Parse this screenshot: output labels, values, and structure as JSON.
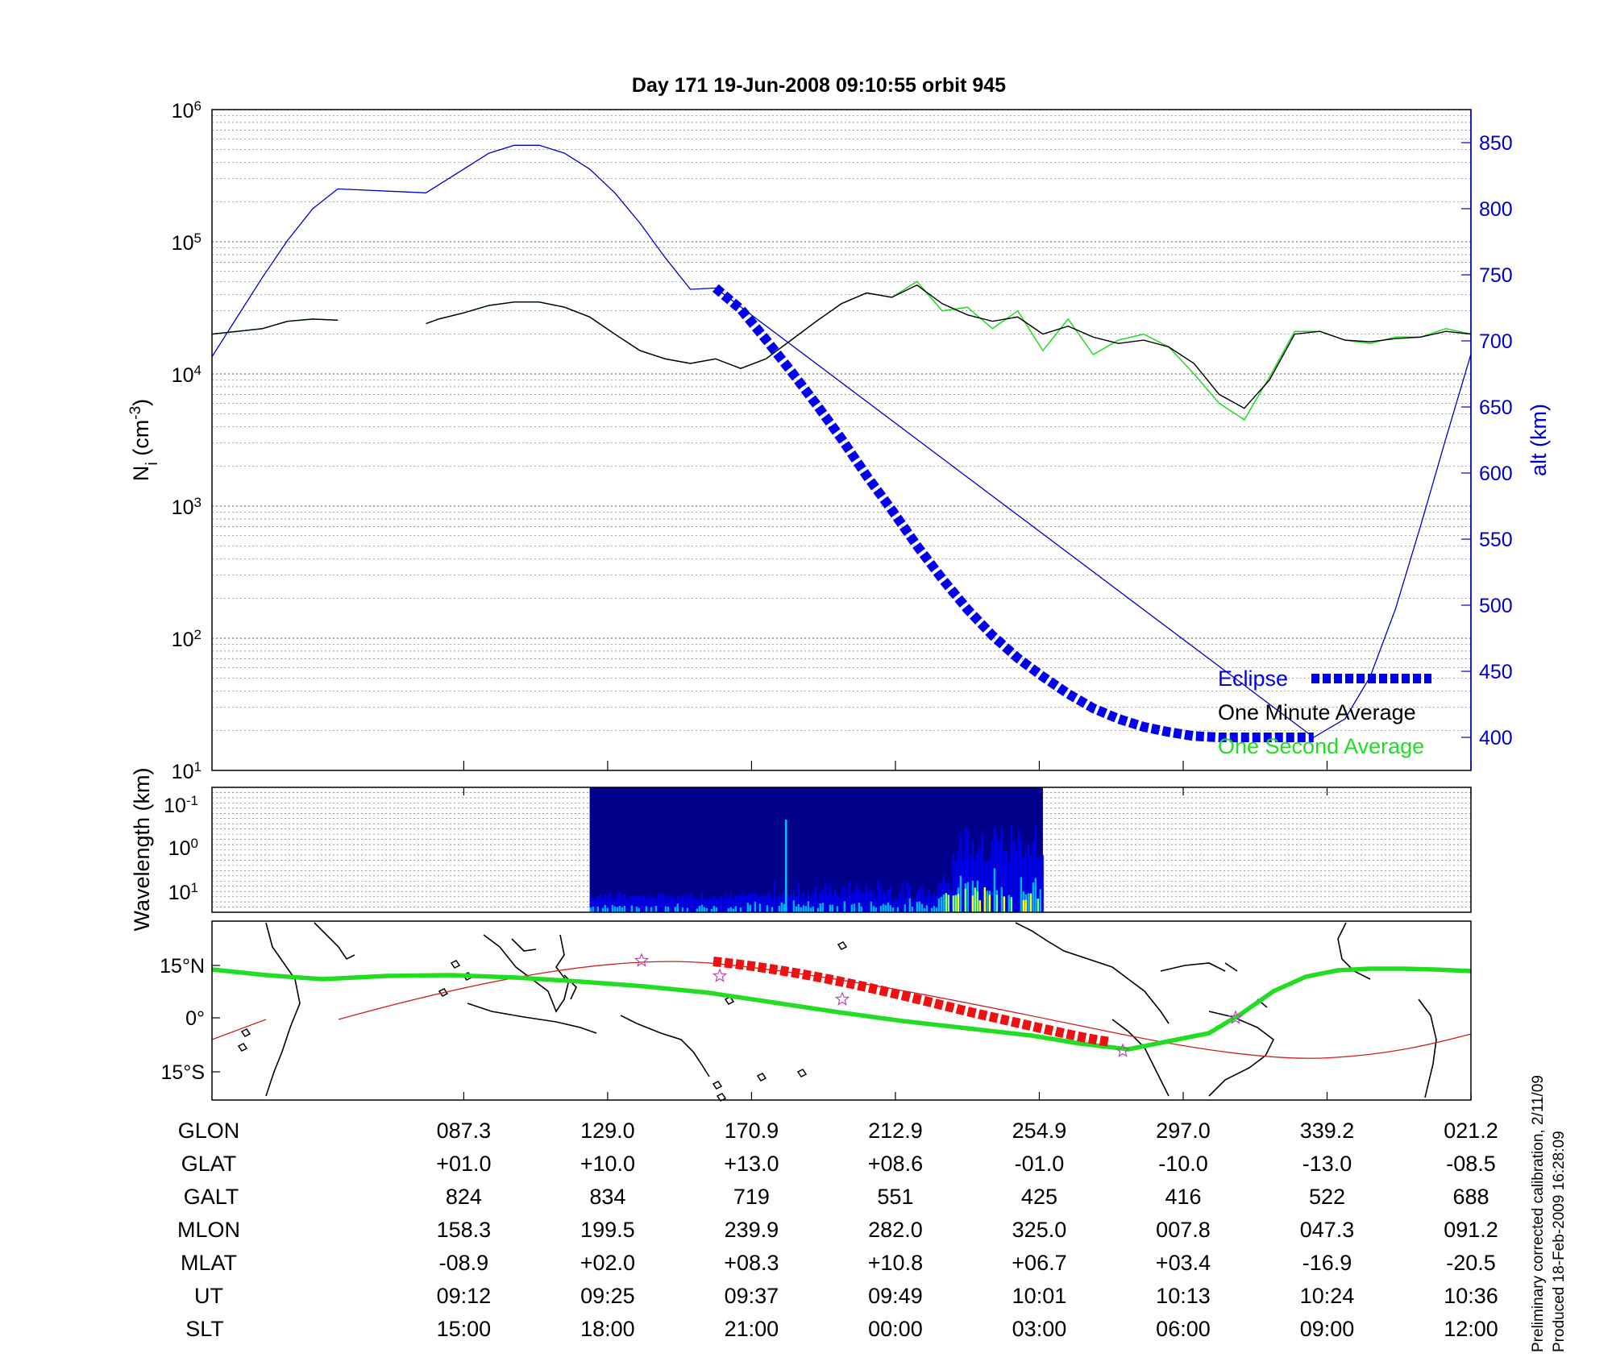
{
  "chart_data": [
    {
      "type": "line",
      "title": "Day 171  19-Jun-2008 09:10:55   orbit 945",
      "y_scale": "log",
      "ylim": [
        10,
        1000000
      ],
      "ylabel_main": "N",
      "ylabel_sub": "i",
      "ylabel_unit": " (cm",
      "ylabel_unit_sup": "-3",
      "ylabel_unit_end": ")",
      "y_ticks": [
        {
          "base": "10",
          "exp": "1"
        },
        {
          "base": "10",
          "exp": "2"
        },
        {
          "base": "10",
          "exp": "3"
        },
        {
          "base": "10",
          "exp": "4"
        },
        {
          "base": "10",
          "exp": "5"
        },
        {
          "base": "10",
          "exp": "6"
        }
      ],
      "y2label": "alt (km)",
      "y2lim": [
        375,
        875
      ],
      "y2_ticks": [
        400,
        450,
        500,
        550,
        600,
        650,
        700,
        750,
        800,
        850
      ],
      "grid": true,
      "legend_position": "bottom-right",
      "series": [
        {
          "name": "Eclipse",
          "color": "#0000ee",
          "axis": "right",
          "style": "thick-dashed",
          "x": [
            0.4,
            0.42,
            0.44,
            0.46,
            0.48,
            0.5,
            0.52,
            0.54,
            0.56,
            0.58,
            0.6,
            0.62,
            0.64,
            0.66,
            0.68,
            0.7,
            0.72,
            0.74,
            0.76,
            0.78,
            0.8,
            0.82,
            0.84,
            0.86,
            0.875
          ],
          "y": [
            740,
            724,
            701,
            677,
            652,
            626,
            598,
            572,
            545,
            520,
            497,
            477,
            460,
            446,
            433,
            422,
            414,
            408,
            404,
            401,
            400,
            400,
            400,
            400,
            400
          ]
        },
        {
          "name": "One Minute Average",
          "color": "#000000",
          "axis": "left",
          "x": [
            0.0,
            0.02,
            0.04,
            0.06,
            0.08,
            0.1,
            0.12,
            0.14,
            0.17,
            0.18,
            0.2,
            0.22,
            0.24,
            0.26,
            0.28,
            0.3,
            0.32,
            0.34,
            0.36,
            0.38,
            0.4,
            0.42,
            0.44,
            0.46,
            0.48,
            0.5,
            0.52,
            0.54,
            0.56,
            0.58,
            0.6,
            0.62,
            0.64,
            0.66,
            0.68,
            0.7,
            0.72,
            0.74,
            0.76,
            0.78,
            0.8,
            0.82,
            0.84,
            0.86,
            0.88,
            0.9,
            0.92,
            0.94,
            0.96,
            0.98,
            1.0
          ],
          "y": [
            20000,
            21000,
            22000,
            25000,
            26000,
            25500,
            null,
            null,
            24000,
            26000,
            29000,
            33000,
            35000,
            35000,
            32000,
            27000,
            20000,
            15000,
            13000,
            12000,
            13000,
            11000,
            13000,
            18000,
            25000,
            34000,
            41000,
            38000,
            47000,
            34000,
            28000,
            25000,
            27000,
            20000,
            23000,
            19000,
            17000,
            18000,
            16000,
            12000,
            7000,
            5500,
            9000,
            20000,
            21000,
            18000,
            17500,
            18500,
            19000,
            21000,
            20000
          ]
        },
        {
          "name": "One Second Average",
          "color": "#22dd22",
          "axis": "left",
          "x": [
            0.0,
            0.02,
            0.04,
            0.06,
            0.08,
            0.1,
            0.12,
            0.14,
            0.17,
            0.18,
            0.2,
            0.22,
            0.24,
            0.26,
            0.28,
            0.3,
            0.32,
            0.34,
            0.36,
            0.38,
            0.4,
            0.42,
            0.44,
            0.46,
            0.48,
            0.5,
            0.52,
            0.54,
            0.56,
            0.58,
            0.6,
            0.62,
            0.64,
            0.66,
            0.68,
            0.7,
            0.72,
            0.74,
            0.76,
            0.78,
            0.8,
            0.82,
            0.84,
            0.86,
            0.88,
            0.9,
            0.92,
            0.94,
            0.96,
            0.98,
            1.0
          ],
          "y": [
            20000,
            21000,
            22000,
            25000,
            26000,
            25500,
            null,
            null,
            24000,
            26000,
            29000,
            33000,
            35000,
            35000,
            32000,
            27000,
            20000,
            15000,
            13000,
            12000,
            13000,
            11000,
            13000,
            18000,
            25000,
            34000,
            41000,
            38000,
            50000,
            30000,
            32000,
            22000,
            30000,
            15000,
            26000,
            14000,
            18000,
            20000,
            16000,
            10000,
            6000,
            4500,
            9500,
            21000,
            21000,
            18000,
            17000,
            19000,
            19000,
            22000,
            20000
          ]
        },
        {
          "name": "altitude",
          "color": "#0000cc",
          "axis": "right",
          "style": "thin",
          "x": [
            0.0,
            0.02,
            0.04,
            0.06,
            0.08,
            0.1,
            0.17,
            0.2,
            0.22,
            0.24,
            0.26,
            0.28,
            0.3,
            0.32,
            0.34,
            0.36,
            0.38,
            0.4,
            0.875,
            0.9,
            0.92,
            0.94,
            0.96,
            0.98,
            1.0
          ],
          "y": [
            688,
            718,
            748,
            776,
            800,
            815,
            812,
            830,
            842,
            848,
            848,
            842,
            830,
            812,
            789,
            763,
            739,
            740,
            400,
            414,
            446,
            497,
            560,
            626,
            690
          ]
        }
      ]
    },
    {
      "type": "heatmap",
      "ylabel": "Wavelength (km)",
      "y_ticks": [
        {
          "base": "10",
          "exp": "-1"
        },
        {
          "base": "10",
          "exp": "0"
        },
        {
          "base": "10",
          "exp": "1"
        }
      ],
      "data_x_range": [
        0.3,
        0.66
      ],
      "colormap": [
        "#00008b",
        "#0000ff",
        "#00bfff",
        "#7fff7f",
        "#ffff00"
      ],
      "grid": true
    },
    {
      "type": "map",
      "lat_ticks": [
        "15°N",
        "0°",
        "15°S"
      ],
      "series": [
        {
          "name": "ground track",
          "color": "#22dd22"
        },
        {
          "name": "orbit",
          "color": "#cc2222"
        },
        {
          "name": "eclipse",
          "color": "#ee1111"
        }
      ],
      "markers_color": "#bb44bb",
      "coastline_color": "#000000"
    }
  ],
  "table": {
    "row_labels": [
      "GLON",
      "GLAT",
      "GALT",
      "MLON",
      "MLAT",
      "UT",
      "SLT"
    ],
    "columns": [
      [
        "087.3",
        "+01.0",
        "824",
        "158.3",
        "-08.9",
        "09:12",
        "15:00"
      ],
      [
        "129.0",
        "+10.0",
        "834",
        "199.5",
        "+02.0",
        "09:25",
        "18:00"
      ],
      [
        "170.9",
        "+13.0",
        "719",
        "239.9",
        "+08.3",
        "09:37",
        "21:00"
      ],
      [
        "212.9",
        "+08.6",
        "551",
        "282.0",
        "+10.8",
        "09:49",
        "00:00"
      ],
      [
        "254.9",
        "-01.0",
        "425",
        "325.0",
        "+06.7",
        "10:01",
        "03:00"
      ],
      [
        "297.0",
        "-10.0",
        "416",
        "007.8",
        "+03.4",
        "10:13",
        "06:00"
      ],
      [
        "339.2",
        "-13.0",
        "522",
        "047.3",
        "-16.9",
        "10:24",
        "09:00"
      ],
      [
        "021.2",
        "-08.5",
        "688",
        "091.2",
        "-20.5",
        "10:36",
        "12:00"
      ]
    ]
  },
  "footnote": {
    "line1": "Preliminary corrected calibration, 2/11/09",
    "line2": "Produced 18-Feb-2009 16:28:09"
  },
  "colors": {
    "eclipse": "#0000ee",
    "one_minute": "#000000",
    "one_second": "#22dd22",
    "altitude": "#0000cc",
    "right_axis": "#0000cc",
    "grid": "#555555"
  }
}
